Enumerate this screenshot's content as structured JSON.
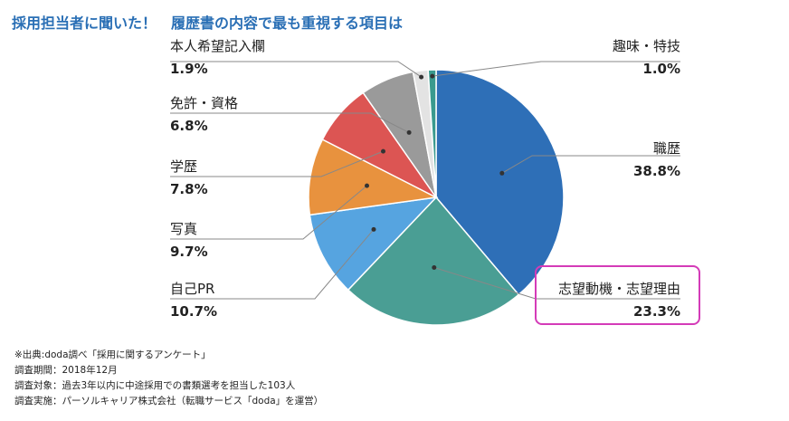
{
  "title": "採用担当者に聞いた！　履歴書の内容で最も重視する項目は",
  "chart_data": {
    "type": "pie",
    "start": "12 o'clock, clockwise",
    "slices": [
      {
        "label": "職歴",
        "value": 38.8,
        "value_label": "38.8%",
        "color": "#2e6fb7"
      },
      {
        "label": "志望動機・志望理由",
        "value": 23.3,
        "value_label": "23.3%",
        "color": "#4a9e94"
      },
      {
        "label": "自己PR",
        "value": 10.7,
        "value_label": "10.7%",
        "color": "#56a4e0"
      },
      {
        "label": "写真",
        "value": 9.7,
        "value_label": "9.7%",
        "color": "#e8923e"
      },
      {
        "label": "学歴",
        "value": 7.8,
        "value_label": "7.8%",
        "color": "#dc5553"
      },
      {
        "label": "免許・資格",
        "value": 6.8,
        "value_label": "6.8%",
        "color": "#9a9a9a"
      },
      {
        "label": "本人希望記入欄",
        "value": 1.9,
        "value_label": "1.9%",
        "color": "#e3e3e3"
      },
      {
        "label": "趣味・特技",
        "value": 1.0,
        "value_label": "1.0%",
        "color": "#3a9a8e"
      }
    ],
    "highlighted": "志望動機・志望理由",
    "highlight_color": "#d43bb8"
  },
  "notes": [
    "※出典:doda調べ「採用に関するアンケート」",
    "調査期間：2018年12月",
    "調査対象：過去3年以内に中途採用での書類選考を担当した103人",
    "調査実施：パーソルキャリア株式会社（転職サービス「doda」を運営）"
  ]
}
